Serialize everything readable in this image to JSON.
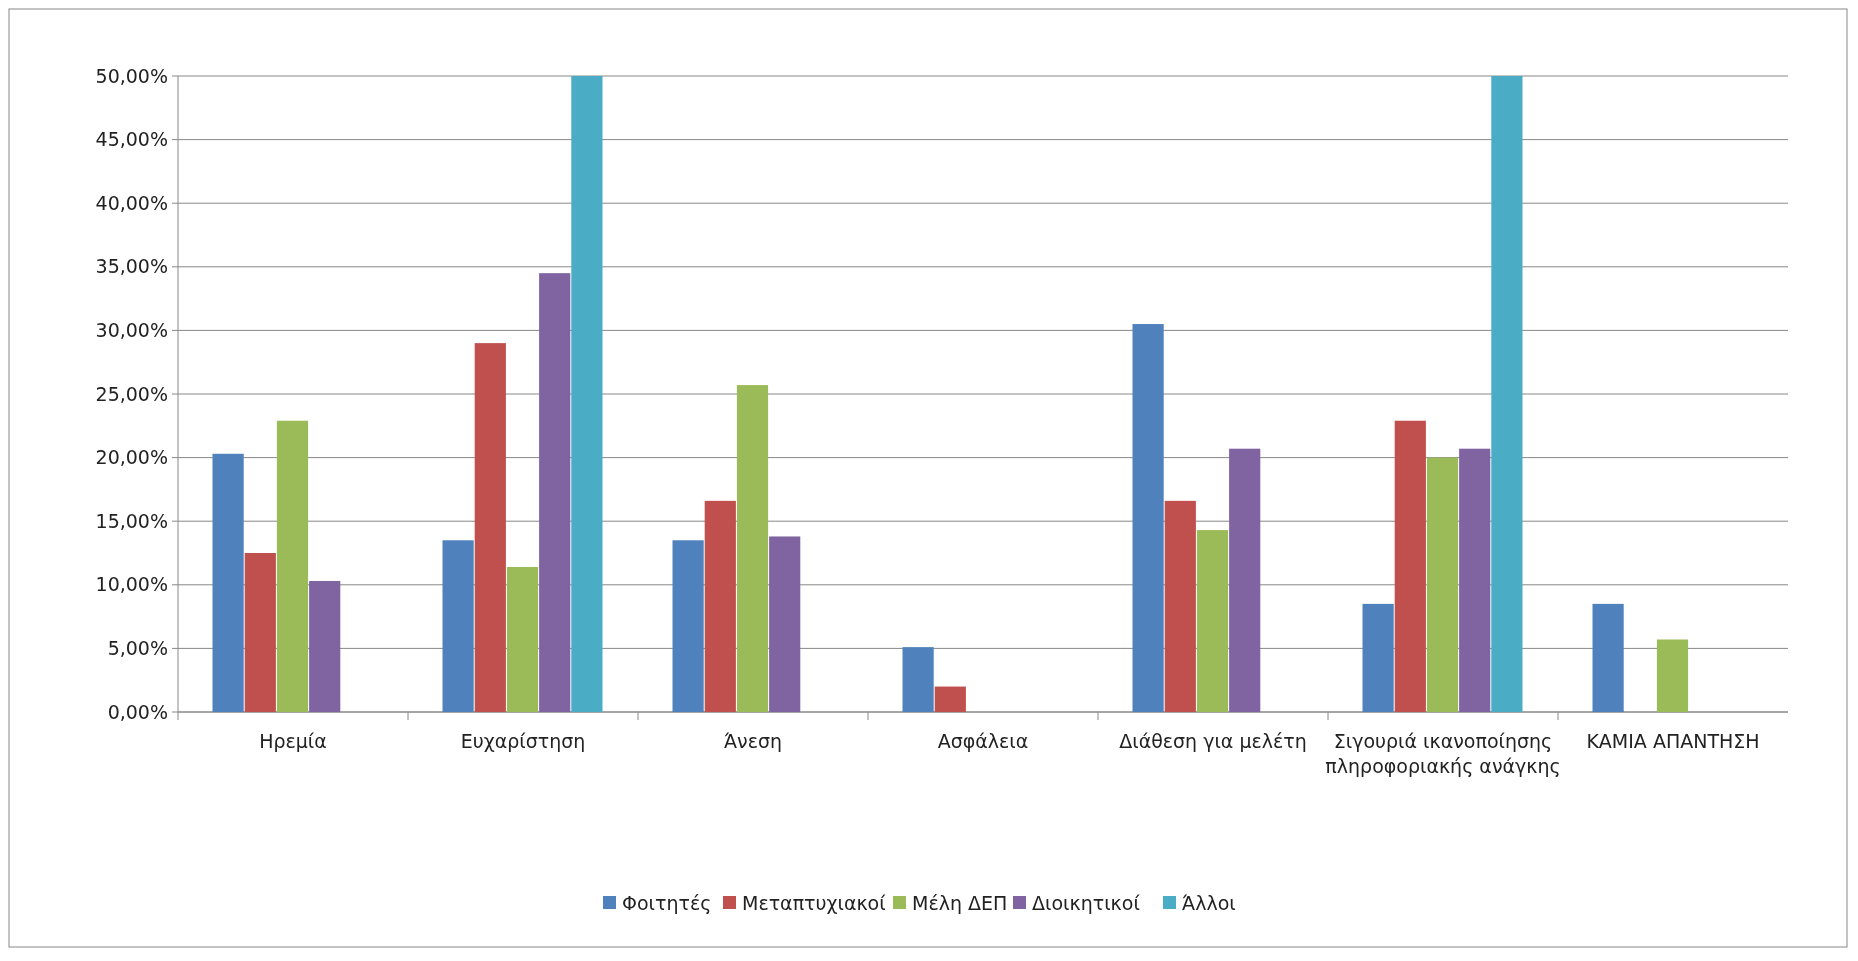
{
  "chart_data": {
    "type": "bar",
    "categories": [
      "Ηρεμία",
      "Ευχαρίστηση",
      "Άνεση",
      "Ασφάλεια",
      "Διάθεση για μελέτη",
      "Σιγουριά ικανοποίησης πληροφοριακής ανάγκης",
      "ΚΑΜΙΑ ΑΠΑΝΤΗΣΗ"
    ],
    "series": [
      {
        "name": "Φοιτητές",
        "color": "#4f81bd",
        "values": [
          20.3,
          13.5,
          13.5,
          5.1,
          30.5,
          8.5,
          8.5
        ]
      },
      {
        "name": "Μεταπτυχιακοί",
        "color": "#c0504d",
        "values": [
          12.5,
          29,
          16.6,
          2,
          16.6,
          22.9,
          0
        ]
      },
      {
        "name": "Μέλη ΔΕΠ",
        "color": "#9bbb59",
        "values": [
          22.9,
          11.4,
          25.7,
          0,
          14.3,
          20,
          5.7
        ]
      },
      {
        "name": "Διοικητικοί",
        "color": "#8064a2",
        "values": [
          10.3,
          34.5,
          13.8,
          0,
          20.7,
          20.7,
          0
        ]
      },
      {
        "name": "Άλλοι",
        "color": "#4bacc6",
        "values": [
          0,
          50,
          0,
          0,
          0,
          50,
          0
        ]
      }
    ],
    "ylim": [
      0,
      50
    ],
    "yticks": [
      {
        "value": 0,
        "label": "0,00%"
      },
      {
        "value": 5,
        "label": "5,00%"
      },
      {
        "value": 10,
        "label": "10,00%"
      },
      {
        "value": 15,
        "label": "15,00%"
      },
      {
        "value": 20,
        "label": "20,00%"
      },
      {
        "value": 25,
        "label": "25,00%"
      },
      {
        "value": 30,
        "label": "30,00%"
      },
      {
        "value": 35,
        "label": "35,00%"
      },
      {
        "value": 40,
        "label": "40,00%"
      },
      {
        "value": 45,
        "label": "45,00%"
      },
      {
        "value": 50,
        "label": "50,00%"
      }
    ],
    "grid": "y",
    "legend": "bottom"
  }
}
